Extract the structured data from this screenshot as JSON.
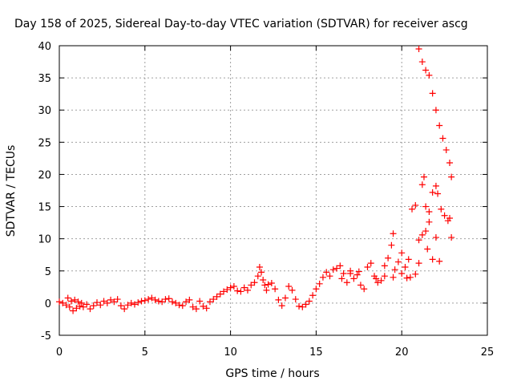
{
  "chart_data": {
    "type": "scatter",
    "title": "Day 158 of 2025, Sidereal Day-to-day VTEC variation (SDTVAR) for receiver ascg",
    "xlabel": "GPS time / hours",
    "ylabel": "SDTVAR / TECUs",
    "xlim": [
      0,
      25
    ],
    "ylim": [
      -5,
      40
    ],
    "xticks": [
      "0",
      "5",
      "10",
      "15",
      "20",
      "25"
    ],
    "yticks": [
      "-5",
      "0",
      "5",
      "10",
      "15",
      "20",
      "25",
      "30",
      "35",
      "40"
    ],
    "grid": true,
    "marker": "plus",
    "series": [
      {
        "name": "SDTVAR",
        "color": "#ff0000",
        "points": [
          [
            0.0,
            0.2
          ],
          [
            0.2,
            0.0
          ],
          [
            0.4,
            -0.3
          ],
          [
            0.5,
            0.8
          ],
          [
            0.6,
            -0.6
          ],
          [
            0.7,
            0.3
          ],
          [
            0.8,
            -1.2
          ],
          [
            0.9,
            0.5
          ],
          [
            1.0,
            -0.8
          ],
          [
            1.1,
            0.2
          ],
          [
            1.2,
            -0.5
          ],
          [
            1.3,
            0.0
          ],
          [
            1.4,
            -0.6
          ],
          [
            1.6,
            -0.2
          ],
          [
            1.8,
            -0.9
          ],
          [
            2.0,
            -0.4
          ],
          [
            2.2,
            0.1
          ],
          [
            2.4,
            -0.3
          ],
          [
            2.6,
            0.3
          ],
          [
            2.8,
            0.0
          ],
          [
            3.0,
            0.5
          ],
          [
            3.2,
            0.2
          ],
          [
            3.4,
            0.6
          ],
          [
            3.6,
            -0.4
          ],
          [
            3.8,
            -0.9
          ],
          [
            4.0,
            -0.3
          ],
          [
            4.2,
            0.0
          ],
          [
            4.4,
            -0.2
          ],
          [
            4.6,
            0.1
          ],
          [
            4.8,
            0.3
          ],
          [
            5.0,
            0.4
          ],
          [
            5.2,
            0.6
          ],
          [
            5.4,
            0.8
          ],
          [
            5.6,
            0.5
          ],
          [
            5.8,
            0.3
          ],
          [
            6.0,
            0.2
          ],
          [
            6.2,
            0.6
          ],
          [
            6.4,
            0.7
          ],
          [
            6.6,
            0.2
          ],
          [
            6.8,
            0.0
          ],
          [
            7.0,
            -0.3
          ],
          [
            7.2,
            -0.4
          ],
          [
            7.4,
            0.2
          ],
          [
            7.6,
            0.5
          ],
          [
            7.8,
            -0.6
          ],
          [
            8.0,
            -0.9
          ],
          [
            8.2,
            0.3
          ],
          [
            8.4,
            -0.5
          ],
          [
            8.6,
            -0.8
          ],
          [
            8.8,
            0.2
          ],
          [
            9.0,
            0.6
          ],
          [
            9.2,
            1.0
          ],
          [
            9.4,
            1.4
          ],
          [
            9.6,
            1.8
          ],
          [
            9.8,
            2.1
          ],
          [
            10.0,
            2.4
          ],
          [
            10.2,
            2.6
          ],
          [
            10.4,
            1.9
          ],
          [
            10.6,
            1.8
          ],
          [
            10.8,
            2.4
          ],
          [
            11.0,
            2.0
          ],
          [
            11.2,
            2.8
          ],
          [
            11.4,
            3.2
          ],
          [
            11.6,
            4.2
          ],
          [
            11.7,
            5.6
          ],
          [
            11.8,
            4.8
          ],
          [
            11.9,
            3.6
          ],
          [
            12.0,
            2.8
          ],
          [
            12.1,
            2.0
          ],
          [
            12.2,
            2.9
          ],
          [
            12.4,
            3.1
          ],
          [
            12.6,
            2.2
          ],
          [
            12.8,
            0.5
          ],
          [
            13.0,
            -0.4
          ],
          [
            13.2,
            0.8
          ],
          [
            13.4,
            2.6
          ],
          [
            13.6,
            2.0
          ],
          [
            13.8,
            0.6
          ],
          [
            14.0,
            -0.5
          ],
          [
            14.2,
            -0.6
          ],
          [
            14.4,
            -0.2
          ],
          [
            14.6,
            0.3
          ],
          [
            14.8,
            1.2
          ],
          [
            15.0,
            2.2
          ],
          [
            15.2,
            3.0
          ],
          [
            15.4,
            4.0
          ],
          [
            15.6,
            4.8
          ],
          [
            15.8,
            4.2
          ],
          [
            16.0,
            5.2
          ],
          [
            16.2,
            5.4
          ],
          [
            16.4,
            5.8
          ],
          [
            16.6,
            4.6
          ],
          [
            16.8,
            3.2
          ],
          [
            17.0,
            5.0
          ],
          [
            17.2,
            3.8
          ],
          [
            17.4,
            4.4
          ],
          [
            17.6,
            2.8
          ],
          [
            17.8,
            2.2
          ],
          [
            18.0,
            5.6
          ],
          [
            18.2,
            6.2
          ],
          [
            18.4,
            4.2
          ],
          [
            18.6,
            3.2
          ],
          [
            18.8,
            3.5
          ],
          [
            19.0,
            5.8
          ],
          [
            19.2,
            7.0
          ],
          [
            19.4,
            9.0
          ],
          [
            19.5,
            10.8
          ],
          [
            19.6,
            5.2
          ],
          [
            19.8,
            6.4
          ],
          [
            20.0,
            7.8
          ],
          [
            20.2,
            5.6
          ],
          [
            20.4,
            6.8
          ],
          [
            20.5,
            4.0
          ],
          [
            20.6,
            14.6
          ],
          [
            20.8,
            15.2
          ],
          [
            21.0,
            9.8
          ],
          [
            21.2,
            10.6
          ],
          [
            21.4,
            11.2
          ],
          [
            21.6,
            12.6
          ],
          [
            21.2,
            18.4
          ],
          [
            21.3,
            19.6
          ],
          [
            21.4,
            15.0
          ],
          [
            21.6,
            14.2
          ],
          [
            21.8,
            17.2
          ],
          [
            22.0,
            18.2
          ],
          [
            22.1,
            17.0
          ],
          [
            22.3,
            14.6
          ],
          [
            22.5,
            13.6
          ],
          [
            22.7,
            12.8
          ],
          [
            22.8,
            13.2
          ],
          [
            22.9,
            10.2
          ],
          [
            22.2,
            6.5
          ],
          [
            21.8,
            6.8
          ],
          [
            21.0,
            39.5
          ],
          [
            21.2,
            37.5
          ],
          [
            21.4,
            36.2
          ],
          [
            21.6,
            35.4
          ],
          [
            21.8,
            32.6
          ],
          [
            22.0,
            30.0
          ],
          [
            22.2,
            27.6
          ],
          [
            22.4,
            25.6
          ],
          [
            22.6,
            23.8
          ],
          [
            22.8,
            21.8
          ],
          [
            22.9,
            19.6
          ],
          [
            16.5,
            3.8
          ],
          [
            17.0,
            4.6
          ],
          [
            17.5,
            4.9
          ],
          [
            18.5,
            3.8
          ],
          [
            19.0,
            4.2
          ],
          [
            19.5,
            4.0
          ],
          [
            20.0,
            4.6
          ],
          [
            20.3,
            3.9
          ],
          [
            20.8,
            4.5
          ],
          [
            21.0,
            6.2
          ],
          [
            21.5,
            8.4
          ],
          [
            22.0,
            10.2
          ]
        ]
      }
    ]
  }
}
